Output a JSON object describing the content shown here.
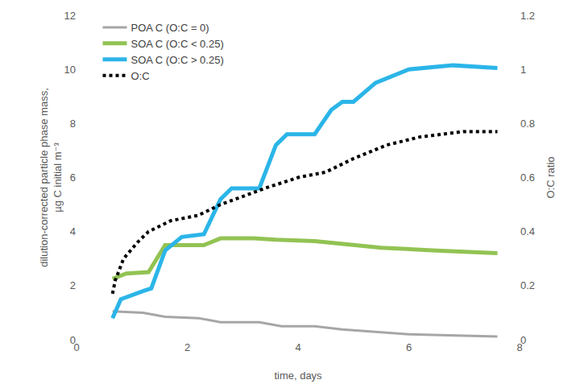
{
  "chart_data": {
    "type": "line",
    "x_label": "time, days",
    "y_label": "dilution-corrected particle phase mass,\nµg C initial m⁻³",
    "y2_label": "O:C ratio",
    "xlim": [
      0,
      8
    ],
    "xticks": [
      0,
      2,
      4,
      6,
      8
    ],
    "ylim": [
      0,
      12
    ],
    "yticks": [
      0,
      2,
      4,
      6,
      8,
      10,
      12
    ],
    "y2lim": [
      0,
      1.2
    ],
    "y2ticks": [
      0,
      0.2,
      0.4,
      0.6,
      0.8,
      1,
      1.2
    ],
    "grid": false,
    "legend": "top left",
    "series": [
      {
        "name": "POA C (O:C = 0)",
        "color": "#a6a6a6",
        "line_style": "solid",
        "x": [
          0.65,
          1.2,
          1.6,
          2.2,
          2.6,
          3.3,
          3.7,
          4.3,
          4.8,
          5.3,
          6.0,
          7.0,
          7.6
        ],
        "values": [
          1.05,
          1.0,
          0.85,
          0.8,
          0.65,
          0.65,
          0.5,
          0.5,
          0.38,
          0.3,
          0.2,
          0.15,
          0.12
        ]
      },
      {
        "name": "SOA C (O:C < 0.25)",
        "color": "#92c353",
        "line_style": "solid",
        "x": [
          0.65,
          0.9,
          1.3,
          1.6,
          2.3,
          2.6,
          3.2,
          3.6,
          4.3,
          4.8,
          5.5,
          6.5,
          7.6
        ],
        "values": [
          2.25,
          2.45,
          2.5,
          3.5,
          3.5,
          3.75,
          3.75,
          3.7,
          3.65,
          3.55,
          3.4,
          3.3,
          3.2
        ]
      },
      {
        "name": "SOA C (O:C > 0.25)",
        "color": "#2bb5e8",
        "line_style": "solid",
        "x": [
          0.65,
          0.8,
          1.2,
          1.35,
          1.6,
          1.9,
          2.3,
          2.6,
          2.8,
          3.3,
          3.6,
          3.8,
          4.3,
          4.6,
          4.8,
          5.0,
          5.4,
          6.0,
          6.8,
          7.6
        ],
        "values": [
          0.8,
          1.5,
          1.8,
          1.9,
          3.3,
          3.8,
          3.9,
          5.2,
          5.6,
          5.6,
          7.2,
          7.6,
          7.6,
          8.5,
          8.8,
          8.8,
          9.5,
          10.0,
          10.15,
          10.05
        ]
      },
      {
        "name": "O:C",
        "color": "#000000",
        "line_style": "dotted",
        "axis": "y2",
        "x": [
          0.65,
          0.7,
          0.85,
          1.1,
          1.3,
          1.7,
          2.2,
          2.6,
          3.0,
          3.4,
          4.0,
          4.5,
          5.0,
          5.6,
          6.2,
          7.0,
          7.6
        ],
        "values": [
          0.17,
          0.22,
          0.3,
          0.36,
          0.4,
          0.44,
          0.46,
          0.5,
          0.53,
          0.56,
          0.6,
          0.62,
          0.67,
          0.72,
          0.75,
          0.77,
          0.77
        ]
      }
    ]
  }
}
